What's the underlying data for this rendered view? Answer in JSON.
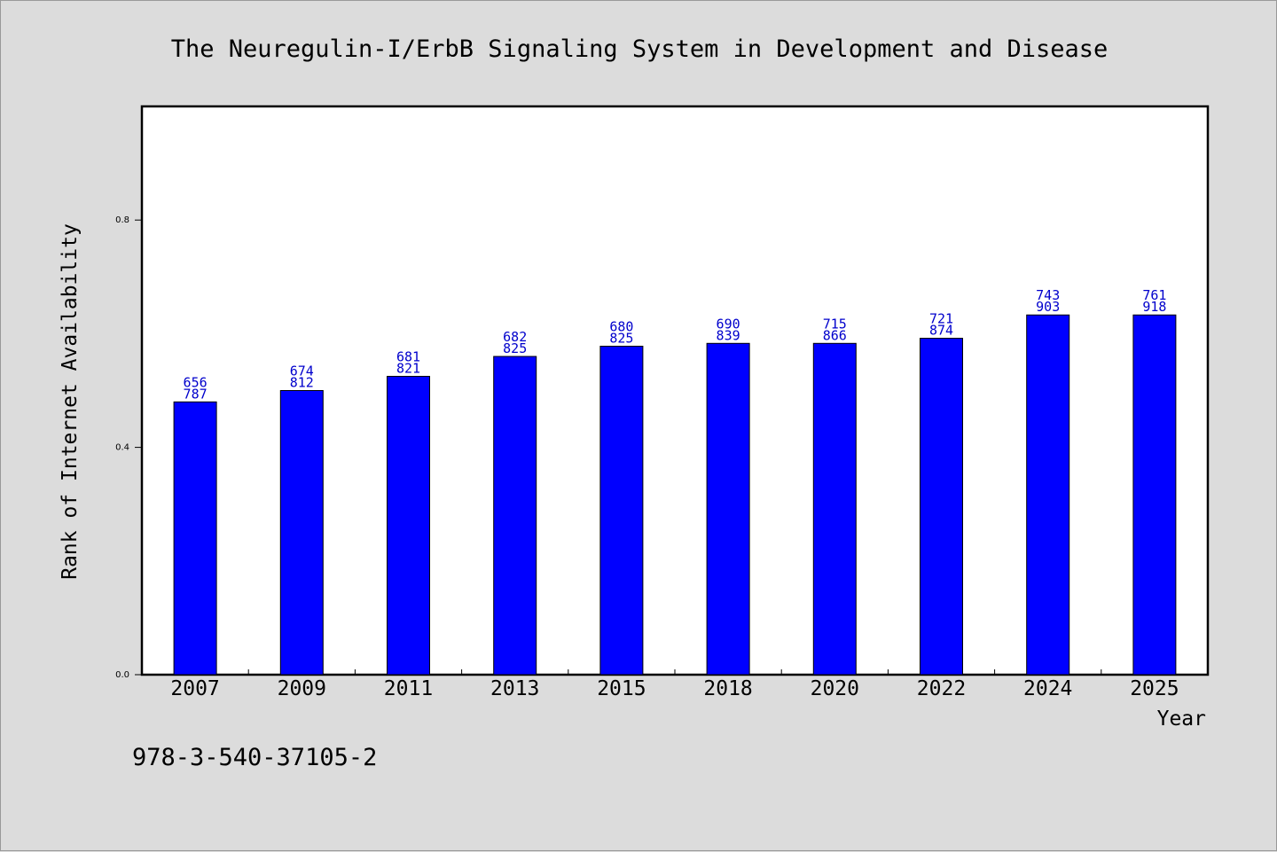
{
  "chart_data": {
    "type": "bar",
    "title": "The Neuregulin-I/ErbB Signaling System in Development and Disease",
    "xlabel": "Year",
    "ylabel": "Rank of Internet Availability",
    "categories": [
      "2007",
      "2009",
      "2011",
      "2013",
      "2015",
      "2018",
      "2020",
      "2022",
      "2024",
      "2025"
    ],
    "values": [
      0.48,
      0.5,
      0.525,
      0.56,
      0.578,
      0.583,
      0.583,
      0.592,
      0.633,
      0.633
    ],
    "label_top": [
      "656",
      "674",
      "681",
      "682",
      "680",
      "690",
      "715",
      "721",
      "743",
      "761"
    ],
    "label_bottom": [
      "787",
      "812",
      "821",
      "825",
      "825",
      "839",
      "866",
      "874",
      "903",
      "918"
    ],
    "ylim": [
      0.0,
      1.0
    ],
    "yticks": [
      0.0,
      0.4,
      0.8
    ],
    "ytick_labels": [
      "0.0",
      "0.4",
      "0.8"
    ],
    "bar_color": "#0000ff",
    "label_color": "#0000cc",
    "grid": false,
    "legend": "none"
  },
  "footer": {
    "code": "978-3-540-37105-2"
  }
}
